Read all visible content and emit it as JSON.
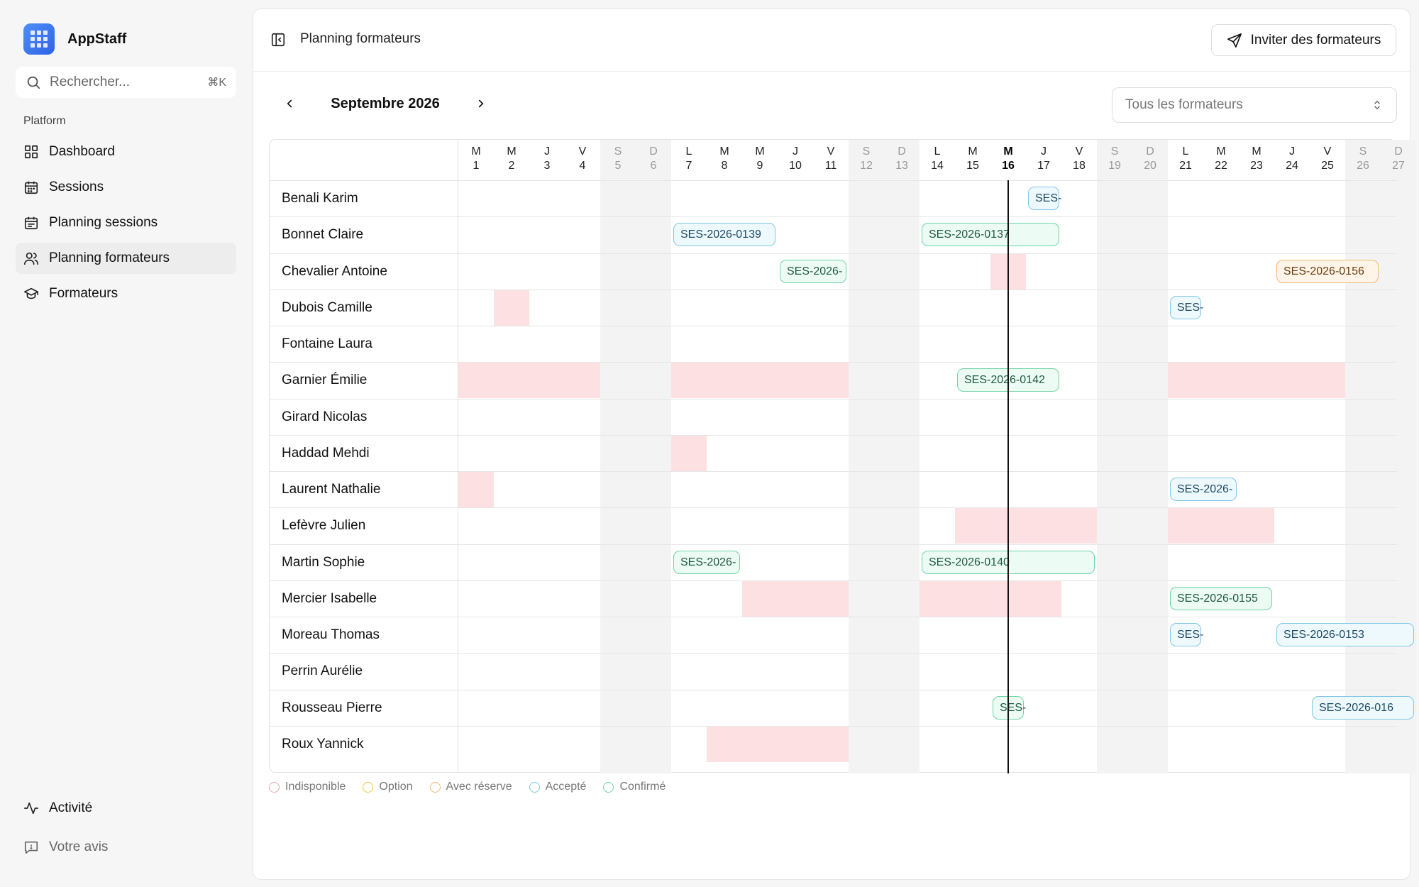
{
  "app": {
    "name": "AppStaff"
  },
  "search": {
    "placeholder": "Rechercher...",
    "shortcut": "⌘K"
  },
  "sidebar": {
    "section_label": "Platform",
    "items": [
      {
        "label": "Dashboard",
        "icon": "grid-icon"
      },
      {
        "label": "Sessions",
        "icon": "calendar-icon"
      },
      {
        "label": "Planning sessions",
        "icon": "calendar-icon"
      },
      {
        "label": "Planning formateurs",
        "icon": "users-icon",
        "active": true
      },
      {
        "label": "Formateurs",
        "icon": "graduation-cap-icon"
      }
    ],
    "bottom": [
      {
        "label": "Activité",
        "icon": "activity-icon"
      },
      {
        "label": "Votre avis",
        "icon": "message-icon"
      }
    ]
  },
  "header": {
    "title": "Planning formateurs",
    "invite_label": "Inviter des formateurs"
  },
  "calendar": {
    "month_label": "Septembre 2026",
    "filter_label": "Tous les formateurs",
    "today": 16,
    "days": [
      {
        "l": "M",
        "n": "1"
      },
      {
        "l": "M",
        "n": "2"
      },
      {
        "l": "J",
        "n": "3"
      },
      {
        "l": "V",
        "n": "4"
      },
      {
        "l": "S",
        "n": "5",
        "we": true
      },
      {
        "l": "D",
        "n": "6",
        "we": true
      },
      {
        "l": "L",
        "n": "7"
      },
      {
        "l": "M",
        "n": "8"
      },
      {
        "l": "M",
        "n": "9"
      },
      {
        "l": "J",
        "n": "10"
      },
      {
        "l": "V",
        "n": "11"
      },
      {
        "l": "S",
        "n": "12",
        "we": true
      },
      {
        "l": "D",
        "n": "13",
        "we": true
      },
      {
        "l": "L",
        "n": "14"
      },
      {
        "l": "M",
        "n": "15"
      },
      {
        "l": "M",
        "n": "16"
      },
      {
        "l": "J",
        "n": "17"
      },
      {
        "l": "V",
        "n": "18"
      },
      {
        "l": "S",
        "n": "19",
        "we": true
      },
      {
        "l": "D",
        "n": "20",
        "we": true
      },
      {
        "l": "L",
        "n": "21"
      },
      {
        "l": "M",
        "n": "22"
      },
      {
        "l": "M",
        "n": "23"
      },
      {
        "l": "J",
        "n": "24"
      },
      {
        "l": "V",
        "n": "25"
      },
      {
        "l": "S",
        "n": "26",
        "we": true
      },
      {
        "l": "D",
        "n": "27",
        "we": true
      }
    ],
    "trainers": [
      {
        "name": "Benali Karim",
        "unavail": [],
        "sessions": [
          {
            "label": "SES-",
            "start": 17,
            "end": 17,
            "status": "acc"
          }
        ]
      },
      {
        "name": "Bonnet Claire",
        "unavail": [],
        "sessions": [
          {
            "label": "SES-2026-0139",
            "start": 7,
            "end": 9,
            "status": "acc"
          },
          {
            "label": "SES-2026-0137",
            "start": 14,
            "end": 17,
            "status": "conf"
          }
        ]
      },
      {
        "name": "Chevalier Antoine",
        "unavail": [
          [
            16,
            16
          ]
        ],
        "sessions": [
          {
            "label": "SES-2026-",
            "start": 10,
            "end": 11,
            "status": "conf"
          },
          {
            "label": "SES-2026-0156",
            "start": 24,
            "end": 26,
            "status": "res"
          }
        ]
      },
      {
        "name": "Dubois Camille",
        "unavail": [
          [
            2,
            2
          ]
        ],
        "sessions": [
          {
            "label": "SES-",
            "start": 21,
            "end": 21,
            "status": "acc"
          }
        ]
      },
      {
        "name": "Fontaine Laura",
        "unavail": [],
        "sessions": []
      },
      {
        "name": "Garnier Émilie",
        "unavail": [
          [
            1,
            4
          ],
          [
            7,
            11
          ],
          [
            21,
            25
          ]
        ],
        "sessions": [
          {
            "label": "SES-2026-0142",
            "start": 15,
            "end": 17,
            "status": "conf"
          }
        ]
      },
      {
        "name": "Girard Nicolas",
        "unavail": [],
        "sessions": []
      },
      {
        "name": "Haddad Mehdi",
        "unavail": [
          [
            7,
            7
          ]
        ],
        "sessions": []
      },
      {
        "name": "Laurent Nathalie",
        "unavail": [
          [
            1,
            1
          ]
        ],
        "sessions": [
          {
            "label": "SES-2026-",
            "start": 21,
            "end": 22,
            "status": "acc"
          }
        ]
      },
      {
        "name": "Lefèvre Julien",
        "unavail": [
          [
            15,
            18
          ],
          [
            21,
            23
          ]
        ],
        "sessions": []
      },
      {
        "name": "Martin Sophie",
        "unavail": [],
        "sessions": [
          {
            "label": "SES-2026-",
            "start": 7,
            "end": 8,
            "status": "conf"
          },
          {
            "label": "SES-2026-0140",
            "start": 14,
            "end": 18,
            "status": "conf"
          }
        ]
      },
      {
        "name": "Mercier Isabelle",
        "unavail": [
          [
            9,
            11
          ],
          [
            14,
            17
          ]
        ],
        "sessions": [
          {
            "label": "SES-2026-0155",
            "start": 21,
            "end": 23,
            "status": "conf"
          }
        ]
      },
      {
        "name": "Moreau Thomas",
        "unavail": [],
        "sessions": [
          {
            "label": "SES-",
            "start": 21,
            "end": 21,
            "status": "acc"
          },
          {
            "label": "SES-2026-0153",
            "start": 24,
            "end": 27,
            "status": "acc"
          }
        ]
      },
      {
        "name": "Perrin Aurélie",
        "unavail": [],
        "sessions": []
      },
      {
        "name": "Rousseau Pierre",
        "unavail": [],
        "sessions": [
          {
            "label": "SES-",
            "start": 16,
            "end": 16,
            "status": "conf"
          },
          {
            "label": "SES-2026-016",
            "start": 25,
            "end": 27,
            "status": "acc"
          }
        ]
      },
      {
        "name": "Roux Yannick",
        "unavail": [
          [
            8,
            11
          ]
        ],
        "sessions": []
      }
    ]
  },
  "legend": [
    {
      "label": "Indisponible",
      "color": "#f2a5a8"
    },
    {
      "label": "Option",
      "color": "#f3c64a"
    },
    {
      "label": "Avec réserve",
      "color": "#f0b878"
    },
    {
      "label": "Accepté",
      "color": "#80c7e6"
    },
    {
      "label": "Confirmé",
      "color": "#6fd3a7"
    }
  ]
}
